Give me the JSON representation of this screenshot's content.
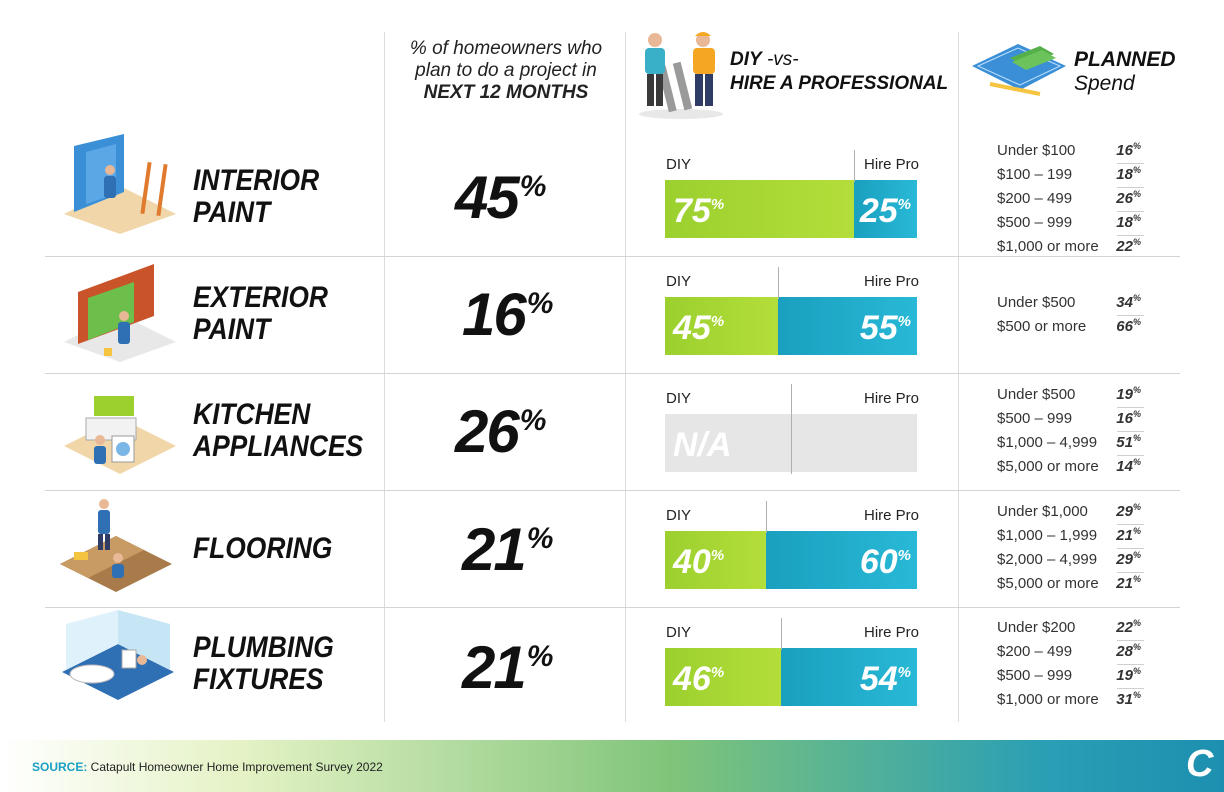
{
  "header": {
    "col2_line1": "% of homeowners who",
    "col2_line2": "plan to do a project in",
    "col2_line3": "NEXT 12 MONTHS",
    "col3_diy": "DIY",
    "col3_vs": " -vs-",
    "col3_line2": "HIRE A PROFESSIONAL",
    "col4_line1": "PLANNED",
    "col4_line2": "Spend"
  },
  "labels": {
    "diy": "DIY",
    "hire_pro": "Hire Pro",
    "pct_symbol": "%"
  },
  "rows": [
    {
      "category_line1": "INTERIOR",
      "category_line2": "PAINT",
      "percent": "45",
      "diy": "75",
      "pro": "25",
      "spend": [
        {
          "range": "Under $100",
          "value": "16"
        },
        {
          "range": "$100 – 199",
          "value": "18"
        },
        {
          "range": "$200 – 499",
          "value": "26"
        },
        {
          "range": "$500 – 999",
          "value": "18"
        },
        {
          "range": "$1,000 or more",
          "value": "22"
        }
      ]
    },
    {
      "category_line1": "EXTERIOR",
      "category_line2": "PAINT",
      "percent": "16",
      "diy": "45",
      "pro": "55",
      "spend": [
        {
          "range": "Under $500",
          "value": "34"
        },
        {
          "range": "$500 or more",
          "value": "66"
        }
      ]
    },
    {
      "category_line1": "KITCHEN",
      "category_line2": "APPLIANCES",
      "percent": "26",
      "na": "N/A",
      "spend": [
        {
          "range": "Under $500",
          "value": "19"
        },
        {
          "range": "$500 – 999",
          "value": "16"
        },
        {
          "range": "$1,000 – 4,999",
          "value": "51"
        },
        {
          "range": "$5,000 or more",
          "value": "14"
        }
      ]
    },
    {
      "category_line1": "FLOORING",
      "category_line2": "",
      "percent": "21",
      "diy": "40",
      "pro": "60",
      "spend": [
        {
          "range": "Under $1,000",
          "value": "29"
        },
        {
          "range": "$1,000 – 1,999",
          "value": "21"
        },
        {
          "range": "$2,000 – 4,999",
          "value": "29"
        },
        {
          "range": "$5,000 or more",
          "value": "21"
        }
      ]
    },
    {
      "category_line1": "PLUMBING",
      "category_line2": "FIXTURES",
      "percent": "21",
      "diy": "46",
      "pro": "54",
      "spend": [
        {
          "range": "Under $200",
          "value": "22"
        },
        {
          "range": "$200 – 499",
          "value": "28"
        },
        {
          "range": "$500 – 999",
          "value": "19"
        },
        {
          "range": "$1,000 or more",
          "value": "31"
        }
      ]
    }
  ],
  "footer": {
    "source_label": "SOURCE:",
    "source_text": " Catapult Homeowner Home Improvement Survey 2022",
    "logo_letter": "C"
  },
  "colors": {
    "diy": "#9bd02e",
    "pro": "#1a9fbf",
    "na": "#e6e6e6",
    "accent": "#1aa0c4"
  },
  "icons": [
    "interior-paint-illustration",
    "exterior-paint-illustration",
    "kitchen-illustration",
    "flooring-illustration",
    "plumbing-illustration",
    "workers-illustration",
    "blueprint-money-illustration",
    "catapult-logo"
  ]
}
